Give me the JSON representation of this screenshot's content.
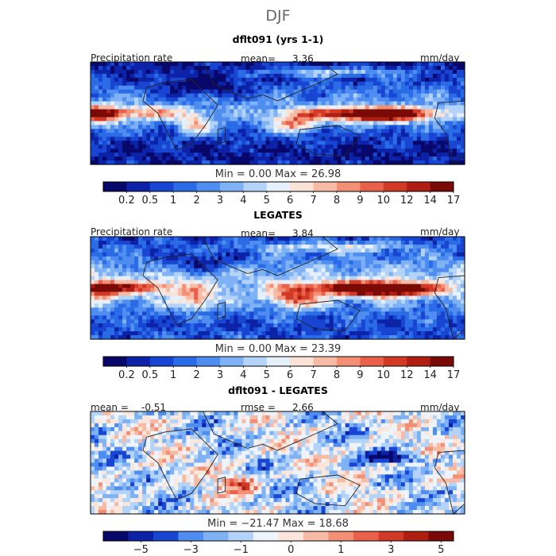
{
  "main_title": "DJF",
  "panels": [
    {
      "title": "dflt091 (yrs 1-1)",
      "left_label": "Precipitation rate",
      "center_label": "mean=",
      "center_value": "3.36",
      "right_label": "mm/day",
      "minmax": "Min =    0.00 Max =   26.98",
      "colorbar_ticks": [
        "0.2",
        "0.5",
        "1",
        "2",
        "3",
        "4",
        "5",
        "6",
        "7",
        "8",
        "9",
        "10",
        "12",
        "14",
        "17"
      ]
    },
    {
      "title": "LEGATES",
      "left_label": "Precipitation rate",
      "center_label": "mean=",
      "center_value": "3.84",
      "right_label": "mm/day",
      "minmax": "Min =    0.00 Max =   23.39",
      "colorbar_ticks": [
        "0.2",
        "0.5",
        "1",
        "2",
        "3",
        "4",
        "5",
        "6",
        "7",
        "8",
        "9",
        "10",
        "12",
        "14",
        "17"
      ]
    },
    {
      "title": "dflt091 - LEGATES",
      "left_label": "mean =",
      "left_value": "-0.51",
      "center_label": "rmse =",
      "center_value": "2.66",
      "right_label": "mm/day",
      "minmax": "Min = −21.47 Max =   18.68",
      "colorbar_ticks": [
        "−5",
        "−3",
        "−1",
        "0",
        "1",
        "3",
        "5"
      ]
    }
  ],
  "colors": {
    "abs_scale": [
      "#08086b",
      "#0c23a8",
      "#1845d2",
      "#2a6be6",
      "#4f8df0",
      "#7fb1f5",
      "#b3d3f8",
      "#e6f0fb",
      "#fbe2d6",
      "#f7bba5",
      "#f28f74",
      "#e9614a",
      "#d23a26",
      "#ae1f12",
      "#7a0a06"
    ],
    "diff_scale": [
      "#08086b",
      "#0c23a8",
      "#1845d2",
      "#4f8df0",
      "#7fb1f5",
      "#b3d3f8",
      "#eef4fc",
      "#fbe6dc",
      "#f7bba5",
      "#f28f74",
      "#e9614a",
      "#d23a26",
      "#ae1f12",
      "#7a0a06"
    ],
    "coast": "#222222"
  },
  "chart_data": {
    "type": "heatmap",
    "season": "DJF",
    "units": "mm/day",
    "maps": [
      {
        "name": "dflt091 (yrs 1-1)",
        "mean": 3.36,
        "min": 0.0,
        "max": 26.98
      },
      {
        "name": "LEGATES",
        "mean": 3.84,
        "min": 0.0,
        "max": 23.39
      },
      {
        "name": "dflt091 - LEGATES",
        "mean": -0.51,
        "rmse": 2.66,
        "min": -21.47,
        "max": 18.68
      }
    ],
    "colorbar_levels_abs": [
      0.2,
      0.5,
      1,
      2,
      3,
      4,
      5,
      6,
      7,
      8,
      9,
      10,
      12,
      14,
      17
    ],
    "colorbar_levels_diff": [
      -5,
      -3,
      -1,
      0,
      1,
      3,
      5
    ]
  }
}
